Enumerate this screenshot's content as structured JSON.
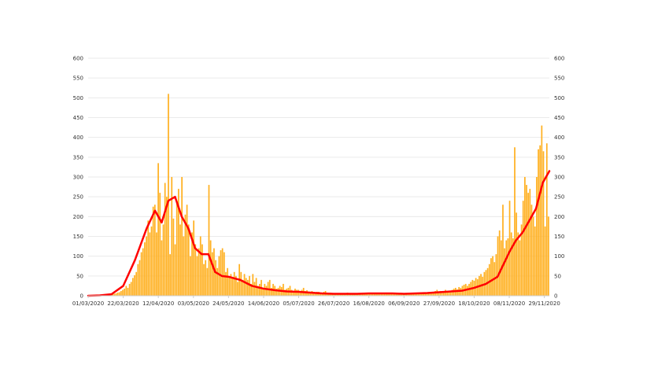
{
  "chart_data": {
    "type": "bar",
    "title": "",
    "xlabel": "",
    "ylabel": "",
    "ylim": [
      0,
      600
    ],
    "y_ticks": [
      0,
      50,
      100,
      150,
      200,
      250,
      300,
      350,
      400,
      450,
      500,
      550,
      600
    ],
    "y_axis_right": true,
    "grid": "horizontal",
    "legend": "none",
    "x_tick_labels": [
      "01/03/2020",
      "22/03/2020",
      "12/04/2020",
      "03/05/2020",
      "24/05/2020",
      "14/06/2020",
      "05/07/2020",
      "26/07/2020",
      "16/08/2020",
      "06/09/2020",
      "27/09/2020",
      "18/10/2020",
      "08/11/2020",
      "29/11/2020"
    ],
    "x_start": "01/03/2020",
    "x_end": "02/12/2020",
    "colors": {
      "bars": "#ffb020",
      "line": "#ff0000"
    },
    "series": [
      {
        "type": "bar",
        "daily_values": [
          0,
          0,
          0,
          0,
          0,
          1,
          1,
          1,
          1,
          2,
          2,
          3,
          3,
          4,
          4,
          5,
          6,
          8,
          9,
          12,
          15,
          18,
          25,
          20,
          30,
          35,
          45,
          52,
          60,
          80,
          90,
          110,
          120,
          135,
          150,
          190,
          160,
          175,
          225,
          230,
          160,
          335,
          260,
          140,
          180,
          285,
          250,
          510,
          105,
          300,
          195,
          130,
          240,
          270,
          180,
          300,
          150,
          205,
          230,
          180,
          100,
          160,
          190,
          130,
          100,
          120,
          150,
          130,
          80,
          90,
          70,
          280,
          140,
          110,
          120,
          90,
          70,
          100,
          115,
          120,
          110,
          60,
          70,
          50,
          55,
          45,
          60,
          50,
          35,
          80,
          60,
          40,
          55,
          45,
          40,
          50,
          30,
          55,
          35,
          45,
          25,
          30,
          40,
          20,
          30,
          25,
          35,
          40,
          20,
          30,
          25,
          18,
          20,
          25,
          22,
          30,
          15,
          18,
          20,
          25,
          15,
          12,
          18,
          15,
          15,
          12,
          15,
          20,
          12,
          14,
          10,
          10,
          12,
          10,
          8,
          10,
          10,
          8,
          8,
          10,
          12,
          8,
          6,
          8,
          7,
          5,
          6,
          5,
          6,
          5,
          4,
          5,
          6,
          8,
          6,
          5,
          5,
          4,
          4,
          5,
          6,
          7,
          8,
          6,
          5,
          6,
          5,
          4,
          4,
          5,
          5,
          6,
          5,
          4,
          5,
          6,
          8,
          6,
          5,
          4,
          5,
          4,
          5,
          6,
          5,
          4,
          5,
          6,
          5,
          5,
          4,
          5,
          5,
          6,
          5,
          6,
          5,
          6,
          7,
          8,
          6,
          5,
          6,
          8,
          10,
          12,
          15,
          10,
          12,
          8,
          10,
          15,
          12,
          10,
          12,
          15,
          18,
          20,
          16,
          22,
          20,
          25,
          28,
          30,
          25,
          30,
          35,
          40,
          38,
          45,
          42,
          50,
          55,
          48,
          60,
          65,
          70,
          80,
          95,
          100,
          85,
          105,
          150,
          165,
          140,
          230,
          120,
          140,
          145,
          240,
          160,
          145,
          375,
          210,
          160,
          140,
          180,
          240,
          300,
          280,
          260,
          270,
          230,
          200,
          175,
          300,
          370,
          380,
          430,
          365,
          175,
          385,
          200
        ]
      },
      {
        "type": "line",
        "name": "",
        "x": [
          "01/03/2020",
          "08/03/2020",
          "15/03/2020",
          "22/03/2020",
          "29/03/2020",
          "05/04/2020",
          "10/04/2020",
          "14/04/2020",
          "18/04/2020",
          "22/04/2020",
          "26/04/2020",
          "30/04/2020",
          "04/05/2020",
          "08/05/2020",
          "12/05/2020",
          "16/05/2020",
          "20/05/2020",
          "24/05/2020",
          "31/05/2020",
          "07/06/2020",
          "14/06/2020",
          "21/06/2020",
          "28/06/2020",
          "05/07/2020",
          "12/07/2020",
          "19/07/2020",
          "26/07/2020",
          "02/08/2020",
          "09/08/2020",
          "16/08/2020",
          "23/08/2020",
          "30/08/2020",
          "06/09/2020",
          "13/09/2020",
          "20/09/2020",
          "27/09/2020",
          "04/10/2020",
          "11/10/2020",
          "18/10/2020",
          "25/10/2020",
          "01/11/2020",
          "08/11/2020",
          "12/11/2020",
          "16/11/2020",
          "20/11/2020",
          "24/11/2020",
          "28/11/2020",
          "02/12/2020"
        ],
        "y": [
          0,
          1,
          4,
          25,
          90,
          170,
          215,
          185,
          240,
          250,
          200,
          170,
          120,
          105,
          105,
          60,
          50,
          48,
          40,
          25,
          18,
          14,
          11,
          10,
          8,
          6,
          5,
          5,
          5,
          6,
          6,
          6,
          5,
          6,
          7,
          9,
          11,
          13,
          20,
          30,
          48,
          110,
          140,
          160,
          190,
          220,
          285,
          315
        ]
      }
    ]
  }
}
